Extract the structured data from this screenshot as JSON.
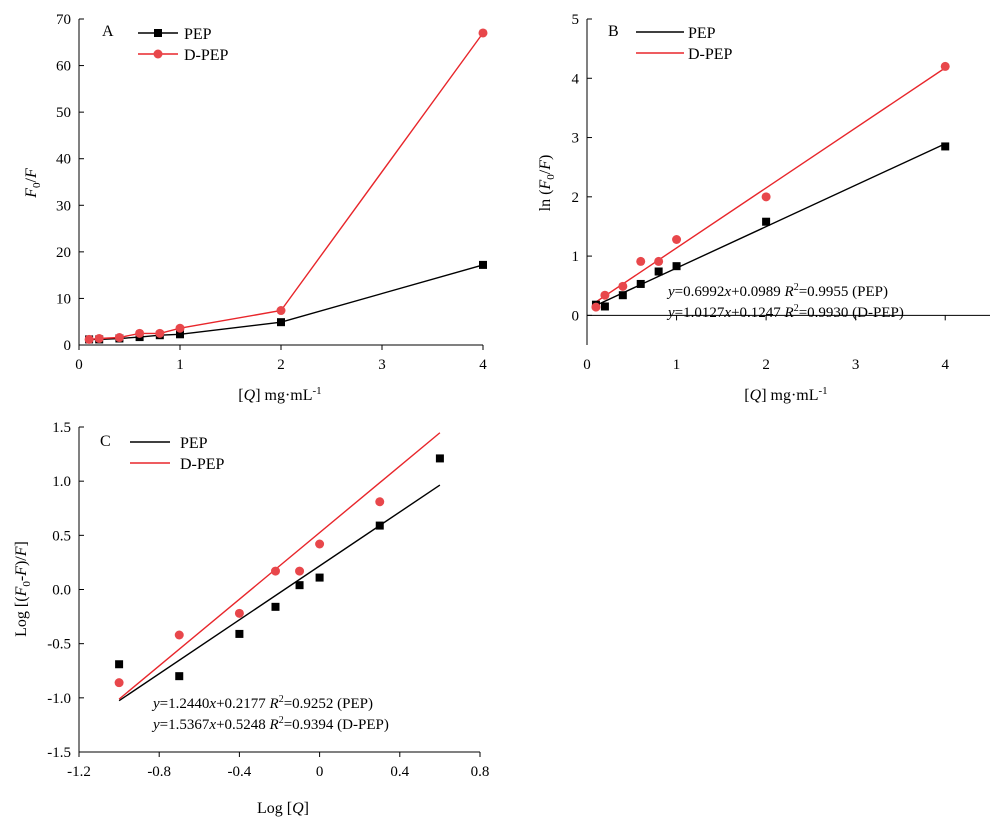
{
  "colors": {
    "pep": "#000000",
    "dpep": "#e8262b",
    "dpep_point": "#e8474b"
  },
  "chart_data": [
    {
      "panel": "A",
      "type": "line",
      "xlabel": "[Q] mg·mL-1",
      "ylabel": "F0/F",
      "xlim": [
        0,
        4
      ],
      "ylim": [
        0,
        70
      ],
      "xticks": [
        0,
        1,
        2,
        3,
        4
      ],
      "yticks": [
        0,
        10,
        20,
        30,
        40,
        50,
        60,
        70
      ],
      "legend": "top-left",
      "series": [
        {
          "name": "PEP",
          "marker": "square",
          "color": "#000000",
          "x": [
            0.1,
            0.2,
            0.4,
            0.6,
            0.8,
            1,
            2,
            4
          ],
          "y": [
            1.2,
            1.2,
            1.4,
            1.7,
            2.1,
            2.3,
            4.9,
            17.2
          ]
        },
        {
          "name": "D-PEP",
          "marker": "circle",
          "color": "#e8262b",
          "x": [
            0.1,
            0.2,
            0.4,
            0.6,
            0.8,
            1,
            2,
            4
          ],
          "y": [
            1.2,
            1.4,
            1.6,
            2.5,
            2.5,
            3.6,
            7.4,
            67
          ]
        }
      ]
    },
    {
      "panel": "B",
      "type": "scatter",
      "xlabel": "[Q] mg·mL-1",
      "ylabel": "ln (F0/F)",
      "xlim": [
        0,
        4.5
      ],
      "ylim": [
        -0.5,
        5
      ],
      "xticks": [
        0,
        1,
        2,
        3,
        4
      ],
      "yticks": [
        0,
        1,
        2,
        3,
        4,
        5
      ],
      "legend": "top-left",
      "series": [
        {
          "name": "PEP",
          "marker": "square",
          "color": "#000000",
          "x": [
            0.1,
            0.2,
            0.4,
            0.6,
            0.8,
            1,
            2,
            4
          ],
          "y": [
            0.18,
            0.15,
            0.34,
            0.53,
            0.74,
            0.83,
            1.58,
            2.85
          ],
          "fit": {
            "slope": 0.6992,
            "intercept": 0.0989,
            "x_range": [
              0.1,
              4
            ]
          }
        },
        {
          "name": "D-PEP",
          "marker": "circle",
          "color": "#e8262b",
          "x": [
            0.1,
            0.2,
            0.4,
            0.6,
            0.8,
            1,
            2,
            4
          ],
          "y": [
            0.14,
            0.34,
            0.49,
            0.91,
            0.91,
            1.28,
            2.0,
            4.2
          ],
          "fit": {
            "slope": 1.0127,
            "intercept": 0.1247,
            "x_range": [
              0.1,
              4
            ]
          }
        }
      ],
      "annotations": [
        "y=0.6992x+0.0989 R2=0.9955 (PEP)",
        "y=1.0127x+0.1247 R2=0.9930 (D-PEP)"
      ]
    },
    {
      "panel": "C",
      "type": "scatter",
      "xlabel": "Log [Q]",
      "ylabel": "Log [(F0-F)/F]",
      "xlim": [
        -1.2,
        0.8
      ],
      "ylim": [
        -1.5,
        1.5
      ],
      "xticks": [
        -1.2,
        -0.8,
        -0.4,
        0,
        0.4,
        0.8
      ],
      "xtick_labels": [
        "-1.2",
        "-0.8",
        "-0.4",
        "0",
        "0.4",
        "0.8"
      ],
      "yticks": [
        -1.5,
        -1.0,
        -0.5,
        0.0,
        0.5,
        1.0,
        1.5
      ],
      "ytick_labels": [
        "-1.5",
        "-1.0",
        "-0.5",
        "0.0",
        "0.5",
        "1.0",
        "1.5"
      ],
      "legend": "top-left",
      "series": [
        {
          "name": "PEP",
          "marker": "square",
          "color": "#000000",
          "x": [
            -1.0,
            -0.7,
            -0.4,
            -0.22,
            -0.1,
            0.0,
            0.3,
            0.6
          ],
          "y": [
            -0.69,
            -0.8,
            -0.41,
            -0.16,
            0.04,
            0.11,
            0.59,
            1.21
          ],
          "fit": {
            "slope": 1.244,
            "intercept": 0.2177,
            "x_range": [
              -1.0,
              0.6
            ]
          }
        },
        {
          "name": "D-PEP",
          "marker": "circle",
          "color": "#e8262b",
          "x": [
            -1.0,
            -0.7,
            -0.4,
            -0.22,
            -0.1,
            0.0,
            0.3
          ],
          "y": [
            -0.86,
            -0.42,
            -0.22,
            0.17,
            0.17,
            0.42,
            0.81
          ],
          "fit": {
            "slope": 1.5367,
            "intercept": 0.5248,
            "x_range": [
              -1.0,
              0.6
            ]
          }
        }
      ],
      "annotations": [
        "y=1.2440x+0.2177 R2=0.9252 (PEP)",
        "y=1.5367x+0.5248 R2=0.9394 (D-PEP)"
      ]
    }
  ]
}
